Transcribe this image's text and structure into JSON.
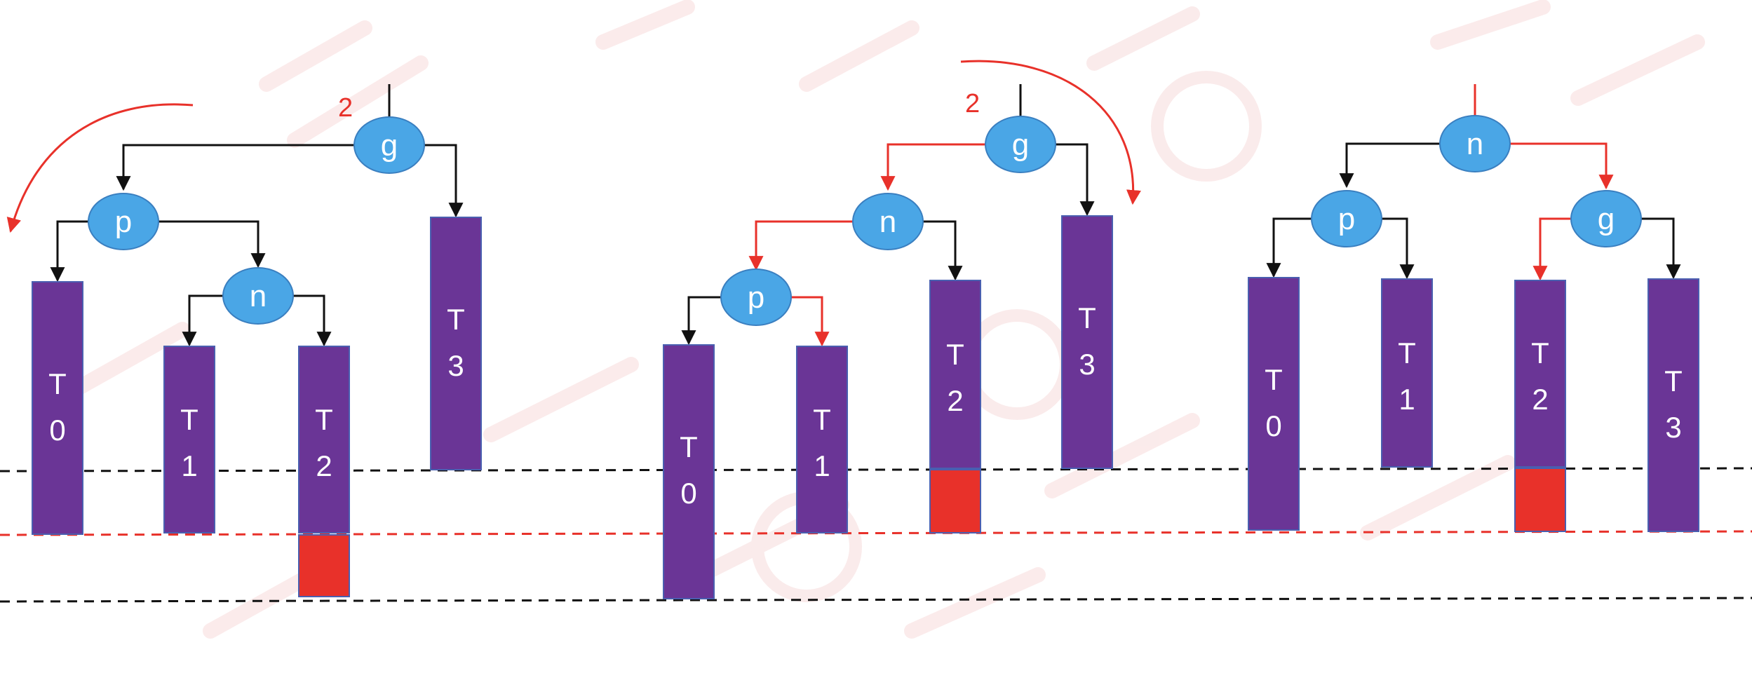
{
  "colors": {
    "node_fill": "#4aa6e6",
    "node_stroke": "#3a7fc0",
    "subtree_fill": "#6a3596",
    "subtree_stroke": "#4a5fb0",
    "overflow_fill": "#e8312a",
    "edge_black": "#111111",
    "edge_red": "#e8312a",
    "baseline_black": "#111111",
    "baseline_red": "#e8312a",
    "watermark": "#f6d3d3"
  },
  "diagram_left": {
    "rotation_label": "2",
    "nodes": {
      "g": "g",
      "p": "p",
      "n": "n"
    },
    "subtrees": {
      "t0": [
        "T",
        "0"
      ],
      "t1": [
        "T",
        "1"
      ],
      "t2": [
        "T",
        "2"
      ],
      "t3": [
        "T",
        "3"
      ]
    }
  },
  "diagram_middle": {
    "rotation_label": "2",
    "nodes": {
      "g": "g",
      "n": "n",
      "p": "p"
    },
    "subtrees": {
      "t0": [
        "T",
        "0"
      ],
      "t1": [
        "T",
        "1"
      ],
      "t2": [
        "T",
        "2"
      ],
      "t3": [
        "T",
        "3"
      ]
    }
  },
  "diagram_right": {
    "nodes": {
      "n": "n",
      "p": "p",
      "g": "g"
    },
    "subtrees": {
      "t0": [
        "T",
        "0"
      ],
      "t1": [
        "T",
        "1"
      ],
      "t2": [
        "T",
        "2"
      ],
      "t3": [
        "T",
        "3"
      ]
    }
  }
}
